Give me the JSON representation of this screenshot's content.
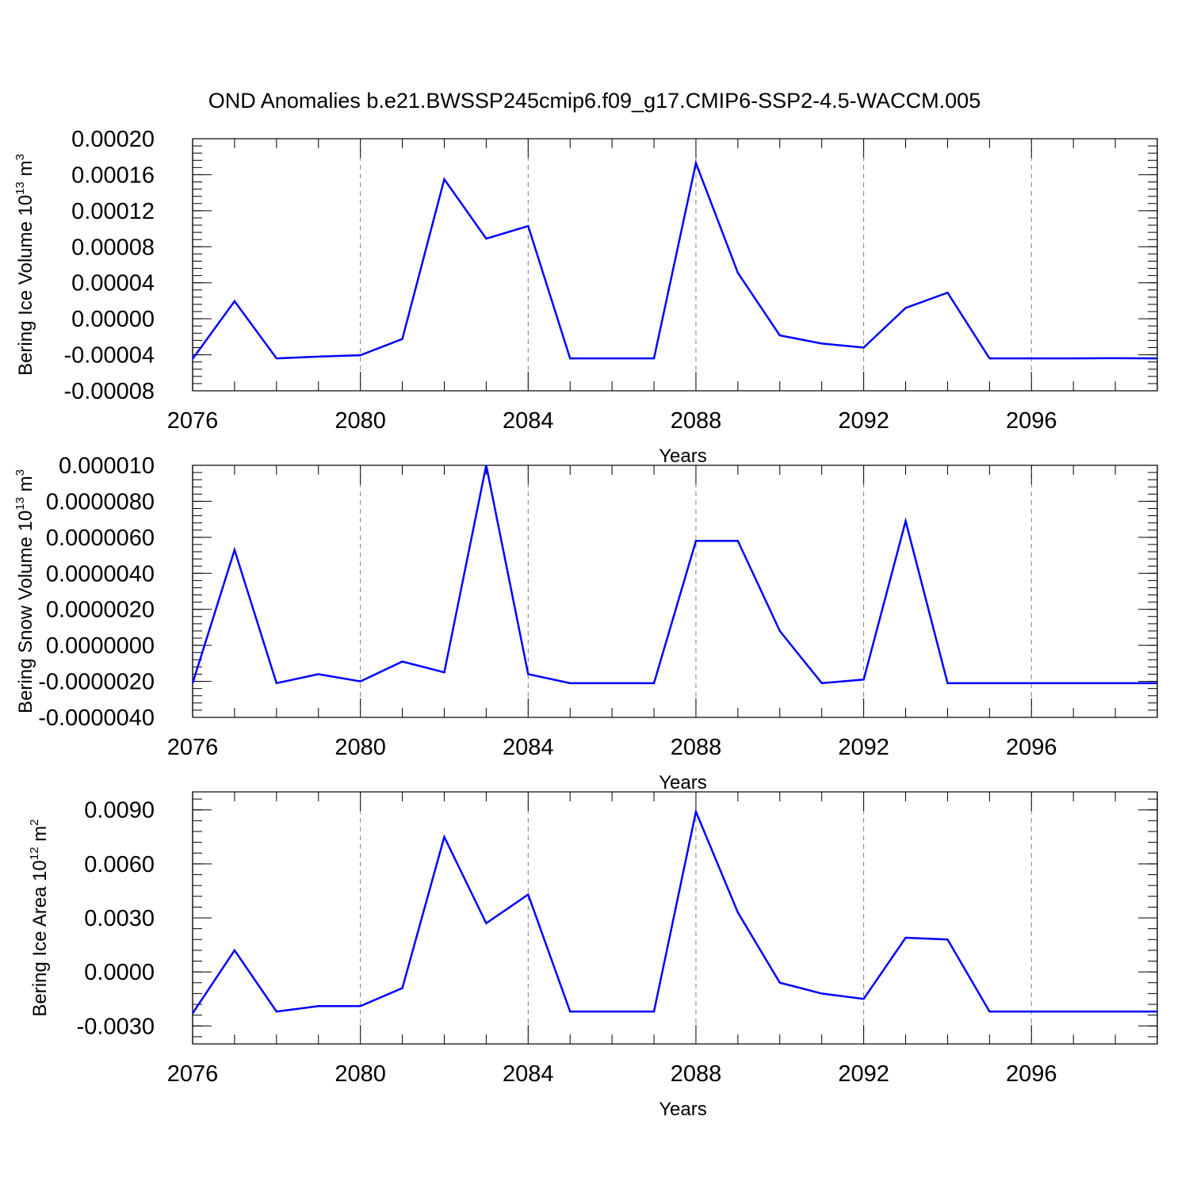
{
  "title": "OND Anomalies b.e21.BWSSP245cmip6.f09_g17.CMIP6-SSP2-4.5-WACCM.005",
  "colors": {
    "line": "#0000ff",
    "axis": "#000000",
    "grid": "#808080"
  },
  "chart_data": [
    {
      "type": "line",
      "ylabel": "Bering Ice Volume 10",
      "ylabel_sup_exp": "13",
      "ylabel_unit": "m",
      "ylabel_unit_exp": "3",
      "xlabel": "Years",
      "xlim": [
        2076,
        2099
      ],
      "ylim": [
        -8e-05,
        0.0002
      ],
      "x_ticks": [
        2076,
        2080,
        2084,
        2088,
        2092,
        2096
      ],
      "x_tick_labels": [
        "2076",
        "2080",
        "2084",
        "2088",
        "2092",
        "2096"
      ],
      "y_ticks": [
        -8e-05,
        -4e-05,
        0.0,
        4e-05,
        8e-05,
        0.00012,
        0.00016,
        0.0002
      ],
      "y_tick_labels": [
        "-0.00008",
        "-0.00004",
        "0.00000",
        "0.00004",
        "0.00008",
        "0.00012",
        "0.00016",
        "0.00020"
      ],
      "x": [
        2076,
        2077,
        2078,
        2079,
        2080,
        2081,
        2082,
        2083,
        2084,
        2085,
        2086,
        2087,
        2088,
        2089,
        2090,
        2091,
        2092,
        2093,
        2094,
        2095,
        2096,
        2097,
        2098,
        2099
      ],
      "y": [
        -4.45e-05,
        1.95e-05,
        -4.4e-05,
        -4.2e-05,
        -4.05e-05,
        -2.25e-05,
        0.000155,
        8.9e-05,
        0.000103,
        -4.4e-05,
        -4.4e-05,
        -4.4e-05,
        0.000173,
        5.1e-05,
        -1.85e-05,
        -2.75e-05,
        -3.2e-05,
        1.2e-05,
        2.9e-05,
        -4.4e-05,
        -4.4e-05,
        -4.4e-05,
        -4.38e-05,
        -4.4e-05
      ]
    },
    {
      "type": "line",
      "ylabel": "Bering Snow Volume 10",
      "ylabel_sup_exp": "13",
      "ylabel_unit": "m",
      "ylabel_unit_exp": "3",
      "xlabel": "Years",
      "xlim": [
        2076,
        2099
      ],
      "ylim": [
        -4e-06,
        1e-05
      ],
      "x_ticks": [
        2076,
        2080,
        2084,
        2088,
        2092,
        2096
      ],
      "x_tick_labels": [
        "2076",
        "2080",
        "2084",
        "2088",
        "2092",
        "2096"
      ],
      "y_ticks": [
        -4e-06,
        -2e-06,
        0.0,
        2e-06,
        4e-06,
        6e-06,
        8e-06,
        1e-05
      ],
      "y_tick_labels": [
        "-0.0000040",
        "-0.0000020",
        "0.0000000",
        "0.0000020",
        "0.0000040",
        "0.0000060",
        "0.0000080",
        "0.000010"
      ],
      "x": [
        2076,
        2077,
        2078,
        2079,
        2080,
        2081,
        2082,
        2083,
        2084,
        2085,
        2086,
        2087,
        2088,
        2089,
        2090,
        2091,
        2092,
        2093,
        2094,
        2095,
        2096,
        2097,
        2098,
        2099
      ],
      "y": [
        -2.1e-06,
        5.3e-06,
        -2.1e-06,
        -1.6e-06,
        -2e-06,
        -9e-07,
        -1.5e-06,
        1e-05,
        -1.6e-06,
        -2.1e-06,
        -2.1e-06,
        -2.1e-06,
        5.8e-06,
        5.8e-06,
        8e-07,
        -2.1e-06,
        -1.9e-06,
        6.9e-06,
        -2.1e-06,
        -2.1e-06,
        -2.1e-06,
        -2.1e-06,
        -2.1e-06,
        -2.1e-06
      ]
    },
    {
      "type": "line",
      "ylabel": "Bering Ice Area 10",
      "ylabel_sup_exp": "12",
      "ylabel_unit": "m",
      "ylabel_unit_exp": "2",
      "xlabel": "Years",
      "xlim": [
        2076,
        2099
      ],
      "ylim": [
        -0.004,
        0.01
      ],
      "x_ticks": [
        2076,
        2080,
        2084,
        2088,
        2092,
        2096
      ],
      "x_tick_labels": [
        "2076",
        "2080",
        "2084",
        "2088",
        "2092",
        "2096"
      ],
      "y_ticks": [
        -0.003,
        0.0,
        0.003,
        0.006,
        0.009
      ],
      "y_tick_labels": [
        "-0.0030",
        "0.0000",
        "0.0030",
        "0.0060",
        "0.0090"
      ],
      "x": [
        2076,
        2077,
        2078,
        2079,
        2080,
        2081,
        2082,
        2083,
        2084,
        2085,
        2086,
        2087,
        2088,
        2089,
        2090,
        2091,
        2092,
        2093,
        2094,
        2095,
        2096,
        2097,
        2098,
        2099
      ],
      "y": [
        -0.0023,
        0.0012,
        -0.0022,
        -0.0019,
        -0.0019,
        -0.0009,
        0.0075,
        0.0027,
        0.0043,
        -0.0022,
        -0.0022,
        -0.0022,
        0.0089,
        0.0033,
        -0.0006,
        -0.0012,
        -0.0015,
        0.0019,
        0.0018,
        -0.0022,
        -0.0022,
        -0.0022,
        -0.0022,
        -0.0022
      ]
    }
  ]
}
